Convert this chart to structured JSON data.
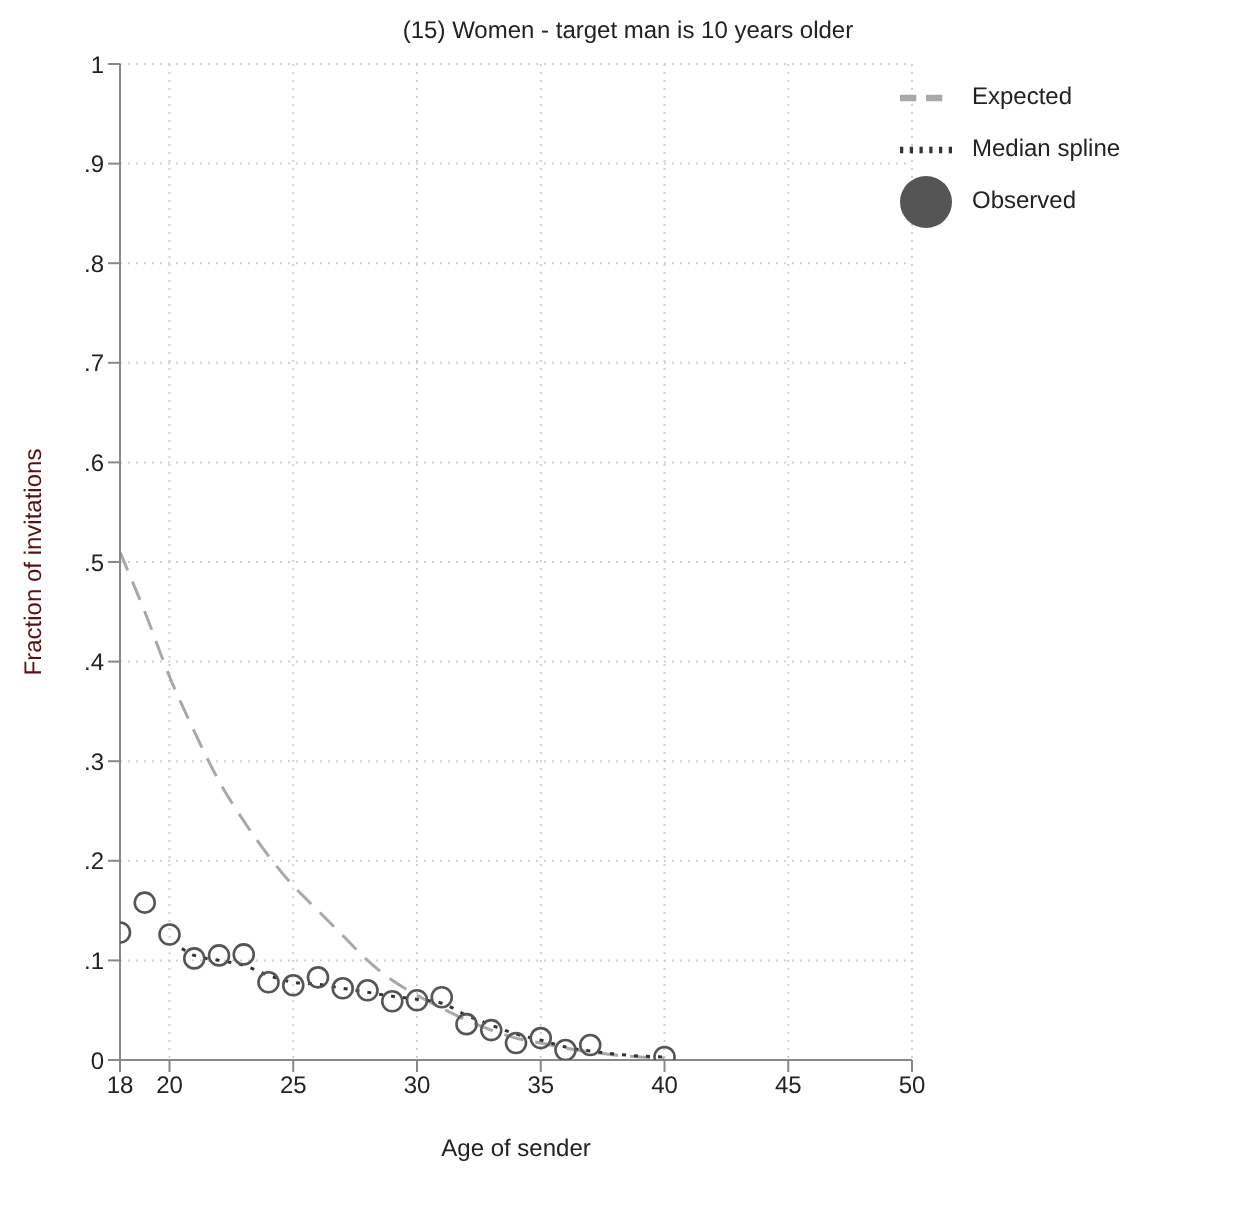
{
  "chart_data": {
    "type": "line",
    "title": "(15) Women - target man is 10 years older",
    "xlabel": "Age of sender",
    "ylabel": "Fraction of invitations",
    "series": [
      {
        "name": "Expected",
        "line_style": "dashed",
        "marker": "none",
        "color": "#a8a8a8",
        "x": [
          18,
          19,
          20,
          21,
          22,
          23,
          24,
          25,
          26,
          27,
          28,
          29,
          30,
          31,
          32,
          33,
          34,
          35,
          36,
          37,
          38,
          39,
          40
        ],
        "values": [
          0.51,
          0.45,
          0.385,
          0.33,
          0.28,
          0.24,
          0.205,
          0.175,
          0.15,
          0.125,
          0.1,
          0.08,
          0.065,
          0.052,
          0.04,
          0.03,
          0.022,
          0.017,
          0.012,
          0.008,
          0.005,
          0.003,
          0.002
        ]
      },
      {
        "name": "Median spline",
        "line_style": "dotted",
        "marker": "none",
        "color": "#333333",
        "x": [
          20.5,
          21,
          22,
          23,
          24,
          25,
          26,
          27,
          28,
          29,
          30,
          31,
          32,
          33,
          34,
          35,
          36,
          37,
          38,
          39,
          40
        ],
        "values": [
          0.112,
          0.105,
          0.1,
          0.095,
          0.085,
          0.078,
          0.076,
          0.072,
          0.068,
          0.064,
          0.061,
          0.057,
          0.045,
          0.035,
          0.026,
          0.02,
          0.013,
          0.009,
          0.006,
          0.004,
          0.003
        ]
      },
      {
        "name": "Observed",
        "type": "scatter",
        "marker": "circle",
        "color": "#555555",
        "x": [
          18,
          19,
          20,
          21,
          22,
          23,
          24,
          25,
          26,
          27,
          28,
          29,
          30,
          31,
          32,
          33,
          34,
          35,
          36,
          37,
          40
        ],
        "values": [
          0.128,
          0.158,
          0.126,
          0.102,
          0.105,
          0.106,
          0.078,
          0.075,
          0.083,
          0.072,
          0.07,
          0.059,
          0.06,
          0.063,
          0.036,
          0.03,
          0.017,
          0.022,
          0.01,
          0.015,
          0.003
        ]
      }
    ],
    "xlim": [
      18,
      50
    ],
    "xticks": [
      18,
      20,
      25,
      30,
      35,
      40,
      45,
      50
    ],
    "ylim": [
      0,
      1
    ],
    "yticks": [
      0,
      {
        "value": 0.1,
        "label": ".1"
      },
      {
        "value": 0.2,
        "label": ".2"
      },
      {
        "value": 0.3,
        "label": ".3"
      },
      {
        "value": 0.4,
        "label": ".4"
      },
      {
        "value": 0.5,
        "label": ".5"
      },
      {
        "value": 0.6,
        "label": ".6"
      },
      {
        "value": 0.7,
        "label": ".7"
      },
      {
        "value": 0.8,
        "label": ".8"
      },
      {
        "value": 0.9,
        "label": ".9"
      },
      1
    ],
    "grid": true,
    "legend": "top right"
  }
}
